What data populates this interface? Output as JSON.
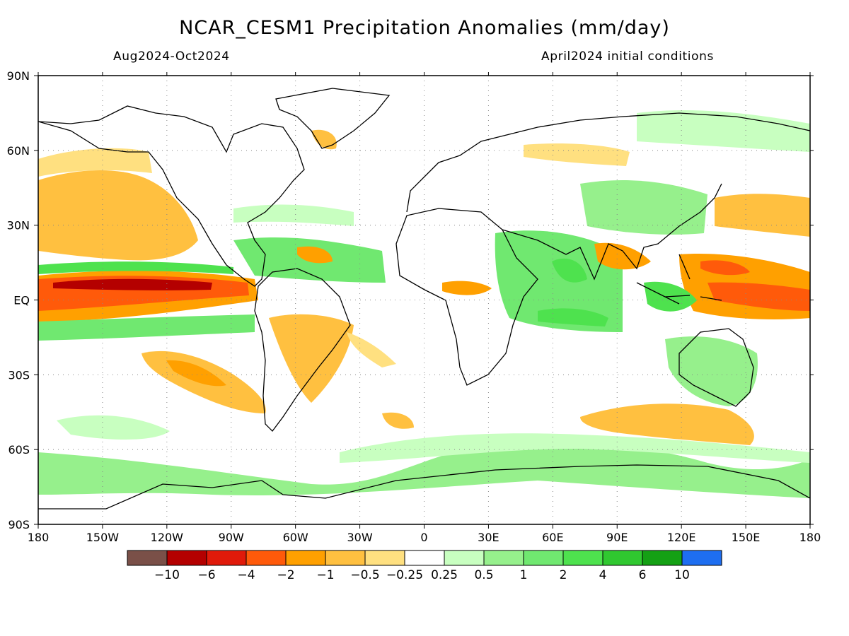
{
  "title": "NCAR_CESM1 Precipitation Anomalies (mm/day)",
  "subtitle_left": "Aug2024-Oct2024",
  "subtitle_right": "April2024 initial conditions",
  "map": {
    "projection": "cylindrical-equidistant",
    "lon_range": [
      -180,
      180
    ],
    "lat_range": [
      -90,
      90
    ],
    "grid": true,
    "lon_ticks": [
      {
        "value": -180,
        "label": "180"
      },
      {
        "value": -150,
        "label": "150W"
      },
      {
        "value": -120,
        "label": "120W"
      },
      {
        "value": -90,
        "label": "90W"
      },
      {
        "value": -60,
        "label": "60W"
      },
      {
        "value": -30,
        "label": "30W"
      },
      {
        "value": 0,
        "label": "0"
      },
      {
        "value": 30,
        "label": "30E"
      },
      {
        "value": 60,
        "label": "60E"
      },
      {
        "value": 90,
        "label": "90E"
      },
      {
        "value": 120,
        "label": "120E"
      },
      {
        "value": 150,
        "label": "150E"
      },
      {
        "value": 180,
        "label": "180"
      }
    ],
    "lat_ticks": [
      {
        "value": 90,
        "label": "90N"
      },
      {
        "value": 60,
        "label": "60N"
      },
      {
        "value": 30,
        "label": "30N"
      },
      {
        "value": 0,
        "label": "EQ"
      },
      {
        "value": -30,
        "label": "30S"
      },
      {
        "value": -60,
        "label": "60S"
      },
      {
        "value": -90,
        "label": "90S"
      }
    ]
  },
  "colorbar": {
    "colors": [
      "#7a5048",
      "#b40000",
      "#e01a0a",
      "#ff5a0a",
      "#ffa000",
      "#ffc040",
      "#ffe080",
      "#ffffff",
      "#c8ffc0",
      "#96f08c",
      "#70e870",
      "#4ee24e",
      "#30c830",
      "#14a014",
      "#1e6ef0"
    ],
    "labels": [
      "−10",
      "−6",
      "−4",
      "−2",
      "−1",
      "−0.5",
      "−0.25",
      "0.25",
      "0.5",
      "1",
      "2",
      "4",
      "6",
      "10"
    ]
  },
  "colors": {
    "land_outline": "#000000",
    "dry_strong": "#b40000",
    "dry": "#ff5a0a",
    "dry_light": "#ffc040",
    "wet_light": "#c8ffc0",
    "wet": "#70e870"
  }
}
